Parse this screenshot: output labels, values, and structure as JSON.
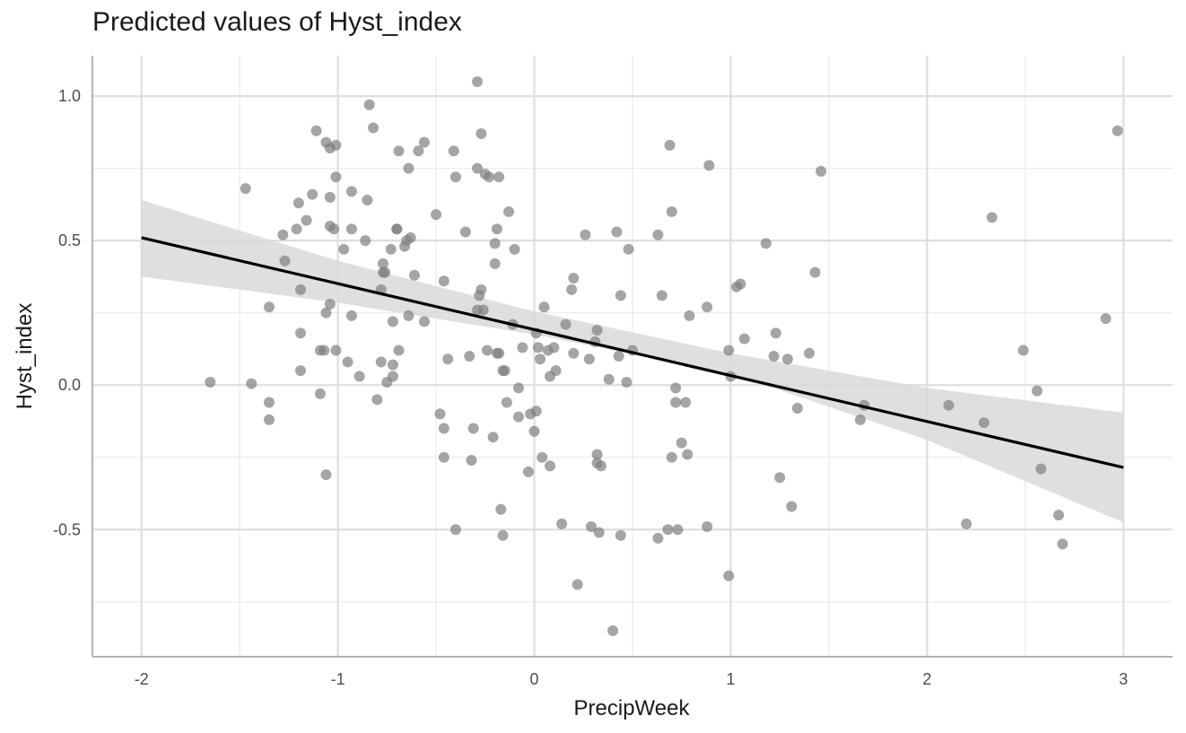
{
  "chart_data": {
    "type": "scatter",
    "title": "Predicted values of Hyst_index",
    "xlabel": "PrecipWeek",
    "ylabel": "Hyst_index",
    "xlim": [
      -2.25,
      3.25
    ],
    "ylim": [
      -0.94,
      1.14
    ],
    "x_ticks": [
      -2,
      -1,
      0,
      1,
      2,
      3
    ],
    "x_tick_labels": [
      "-2",
      "-1",
      "0",
      "1",
      "2",
      "3"
    ],
    "y_ticks": [
      -0.5,
      0.0,
      0.5,
      1.0
    ],
    "y_tick_labels": [
      "-0.5",
      "0.0",
      "0.5",
      "1.0"
    ],
    "grid": true,
    "point_color": "#7f7f7f",
    "line_color": "#000000",
    "band_color": "#d9d9d9",
    "fit_line": {
      "x": [
        -2,
        3
      ],
      "y": [
        0.51,
        -0.285
      ]
    },
    "confidence_band": {
      "x": [
        -2,
        -1,
        0,
        1,
        2,
        3
      ],
      "upper": [
        0.64,
        0.43,
        0.255,
        0.11,
        -0.01,
        -0.095
      ],
      "lower": [
        0.375,
        0.285,
        0.175,
        0.04,
        -0.19,
        -0.475
      ]
    },
    "points": [
      [
        -1.65,
        0.01
      ],
      [
        -1.47,
        0.68
      ],
      [
        -1.44,
        0.005
      ],
      [
        -1.35,
        0.27
      ],
      [
        -1.35,
        -0.06
      ],
      [
        -1.35,
        -0.12
      ],
      [
        -1.28,
        0.52
      ],
      [
        -1.27,
        0.43
      ],
      [
        -1.21,
        0.54
      ],
      [
        -1.2,
        0.63
      ],
      [
        -1.19,
        0.18
      ],
      [
        -1.19,
        0.05
      ],
      [
        -1.19,
        0.33
      ],
      [
        -1.16,
        0.57
      ],
      [
        -1.13,
        0.66
      ],
      [
        -1.11,
        0.88
      ],
      [
        -1.09,
        0.12
      ],
      [
        -1.09,
        -0.03
      ],
      [
        -1.07,
        0.12
      ],
      [
        -1.06,
        0.84
      ],
      [
        -1.06,
        0.25
      ],
      [
        -1.06,
        -0.31
      ],
      [
        -1.04,
        0.82
      ],
      [
        -1.04,
        0.65
      ],
      [
        -1.04,
        0.55
      ],
      [
        -1.04,
        0.28
      ],
      [
        -1.02,
        0.54
      ],
      [
        -1.01,
        0.83
      ],
      [
        -1.01,
        0.72
      ],
      [
        -1.01,
        0.12
      ],
      [
        -0.97,
        0.47
      ],
      [
        -0.95,
        0.08
      ],
      [
        -0.93,
        0.54
      ],
      [
        -0.93,
        0.24
      ],
      [
        -0.93,
        0.67
      ],
      [
        -0.89,
        0.03
      ],
      [
        -0.86,
        0.5
      ],
      [
        -0.85,
        0.64
      ],
      [
        -0.84,
        0.97
      ],
      [
        -0.82,
        0.89
      ],
      [
        -0.8,
        -0.05
      ],
      [
        -0.78,
        0.33
      ],
      [
        -0.78,
        0.08
      ],
      [
        -0.77,
        0.39
      ],
      [
        -0.76,
        0.39
      ],
      [
        -0.77,
        0.42
      ],
      [
        -0.75,
        0.01
      ],
      [
        -0.73,
        0.47
      ],
      [
        -0.72,
        0.03
      ],
      [
        -0.72,
        0.22
      ],
      [
        -0.72,
        0.07
      ],
      [
        -0.7,
        0.54
      ],
      [
        -0.7,
        0.54
      ],
      [
        -0.69,
        0.81
      ],
      [
        -0.69,
        0.12
      ],
      [
        -0.66,
        0.48
      ],
      [
        -0.65,
        0.5
      ],
      [
        -0.64,
        0.24
      ],
      [
        -0.64,
        0.75
      ],
      [
        -0.63,
        0.51
      ],
      [
        -0.61,
        0.38
      ],
      [
        -0.59,
        0.81
      ],
      [
        -0.56,
        0.84
      ],
      [
        -0.56,
        0.22
      ],
      [
        -0.5,
        0.59
      ],
      [
        -0.48,
        -0.1
      ],
      [
        -0.46,
        0.36
      ],
      [
        -0.46,
        -0.25
      ],
      [
        -0.46,
        -0.15
      ],
      [
        -0.44,
        0.09
      ],
      [
        -0.41,
        0.81
      ],
      [
        -0.4,
        0.72
      ],
      [
        -0.4,
        -0.5
      ],
      [
        -0.35,
        0.53
      ],
      [
        -0.33,
        0.1
      ],
      [
        -0.32,
        -0.26
      ],
      [
        -0.31,
        -0.15
      ],
      [
        -0.29,
        1.05
      ],
      [
        -0.29,
        0.75
      ],
      [
        -0.29,
        0.26
      ],
      [
        -0.28,
        0.31
      ],
      [
        -0.27,
        0.87
      ],
      [
        -0.27,
        0.33
      ],
      [
        -0.26,
        0.26
      ],
      [
        -0.25,
        0.73
      ],
      [
        -0.24,
        0.12
      ],
      [
        -0.23,
        0.72
      ],
      [
        -0.21,
        -0.18
      ],
      [
        -0.2,
        0.42
      ],
      [
        -0.2,
        0.49
      ],
      [
        -0.19,
        0.54
      ],
      [
        -0.19,
        0.11
      ],
      [
        -0.18,
        0.11
      ],
      [
        -0.18,
        0.72
      ],
      [
        -0.17,
        -0.43
      ],
      [
        -0.16,
        -0.52
      ],
      [
        -0.16,
        0.05
      ],
      [
        -0.15,
        0.05
      ],
      [
        -0.14,
        -0.06
      ],
      [
        -0.13,
        0.6
      ],
      [
        -0.11,
        0.21
      ],
      [
        -0.1,
        0.47
      ],
      [
        -0.08,
        -0.11
      ],
      [
        -0.08,
        -0.01
      ],
      [
        -0.06,
        0.13
      ],
      [
        -0.03,
        -0.3
      ],
      [
        -0.02,
        -0.1
      ],
      [
        0.0,
        -0.16
      ],
      [
        0.01,
        -0.09
      ],
      [
        0.01,
        0.18
      ],
      [
        0.02,
        0.13
      ],
      [
        0.03,
        0.09
      ],
      [
        0.04,
        -0.25
      ],
      [
        0.05,
        0.27
      ],
      [
        0.07,
        0.12
      ],
      [
        0.08,
        -0.28
      ],
      [
        0.08,
        0.03
      ],
      [
        0.1,
        0.13
      ],
      [
        0.11,
        0.05
      ],
      [
        0.14,
        -0.48
      ],
      [
        0.16,
        0.21
      ],
      [
        0.19,
        0.33
      ],
      [
        0.2,
        0.11
      ],
      [
        0.2,
        0.37
      ],
      [
        0.22,
        -0.69
      ],
      [
        0.26,
        0.52
      ],
      [
        0.28,
        0.09
      ],
      [
        0.29,
        -0.49
      ],
      [
        0.31,
        0.15
      ],
      [
        0.32,
        0.19
      ],
      [
        0.32,
        -0.24
      ],
      [
        0.32,
        -0.27
      ],
      [
        0.33,
        -0.51
      ],
      [
        0.34,
        -0.28
      ],
      [
        0.38,
        0.02
      ],
      [
        0.4,
        -0.85
      ],
      [
        0.42,
        0.53
      ],
      [
        0.43,
        0.1
      ],
      [
        0.44,
        0.31
      ],
      [
        0.44,
        -0.52
      ],
      [
        0.47,
        0.01
      ],
      [
        0.48,
        0.47
      ],
      [
        0.5,
        0.12
      ],
      [
        0.63,
        0.52
      ],
      [
        0.63,
        -0.53
      ],
      [
        0.65,
        0.31
      ],
      [
        0.68,
        -0.5
      ],
      [
        0.69,
        0.83
      ],
      [
        0.7,
        -0.25
      ],
      [
        0.7,
        0.6
      ],
      [
        0.72,
        -0.06
      ],
      [
        0.72,
        -0.01
      ],
      [
        0.73,
        -0.5
      ],
      [
        0.75,
        -0.2
      ],
      [
        0.77,
        -0.06
      ],
      [
        0.78,
        -0.24
      ],
      [
        0.79,
        0.24
      ],
      [
        0.88,
        0.27
      ],
      [
        0.88,
        -0.49
      ],
      [
        0.89,
        0.76
      ],
      [
        0.99,
        -0.66
      ],
      [
        0.99,
        0.12
      ],
      [
        1.0,
        0.03
      ],
      [
        1.03,
        0.34
      ],
      [
        1.05,
        0.35
      ],
      [
        1.07,
        0.16
      ],
      [
        1.18,
        0.49
      ],
      [
        1.22,
        0.1
      ],
      [
        1.23,
        0.18
      ],
      [
        1.25,
        -0.32
      ],
      [
        1.29,
        0.09
      ],
      [
        1.31,
        -0.42
      ],
      [
        1.34,
        -0.08
      ],
      [
        1.4,
        0.11
      ],
      [
        1.43,
        0.39
      ],
      [
        1.46,
        0.74
      ],
      [
        1.66,
        -0.12
      ],
      [
        1.68,
        -0.07
      ],
      [
        2.11,
        -0.07
      ],
      [
        2.2,
        -0.48
      ],
      [
        2.29,
        -0.13
      ],
      [
        2.33,
        0.58
      ],
      [
        2.49,
        0.12
      ],
      [
        2.56,
        -0.02
      ],
      [
        2.58,
        -0.29
      ],
      [
        2.67,
        -0.45
      ],
      [
        2.69,
        -0.55
      ],
      [
        2.91,
        0.23
      ],
      [
        2.97,
        0.88
      ]
    ]
  }
}
